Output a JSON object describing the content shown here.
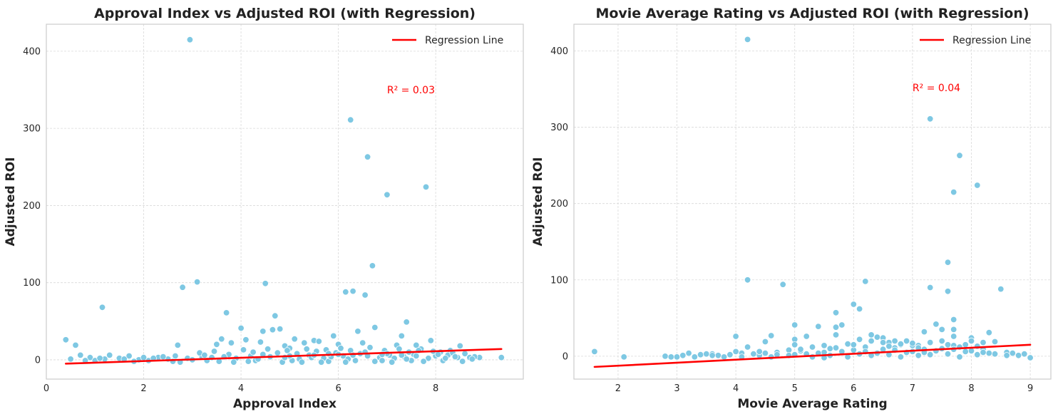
{
  "chart_data": [
    {
      "type": "scatter",
      "title": "Approval Index vs Adjusted ROI (with Regression)",
      "xlabel": "Approval Index",
      "ylabel": "Adjusted ROI",
      "xlim": [
        0,
        9.8
      ],
      "ylim": [
        -25,
        435
      ],
      "xticks": [
        0,
        2,
        4,
        6,
        8
      ],
      "yticks": [
        0,
        100,
        200,
        300,
        400
      ],
      "grid": true,
      "legend": {
        "placement": "top-right",
        "entries": [
          "Regression Line"
        ]
      },
      "annotation": "R² = 0.03",
      "annotation_at": {
        "x": 7.0,
        "y": 350
      },
      "point_color": "#7ec8e3",
      "line_color": "#ff0000",
      "regression": {
        "x": [
          0.4,
          9.35
        ],
        "y": [
          -5,
          14
        ]
      },
      "points": [
        [
          0.4,
          26
        ],
        [
          0.6,
          19
        ],
        [
          1.15,
          68
        ],
        [
          2.8,
          94
        ],
        [
          2.95,
          415
        ],
        [
          3.1,
          101
        ],
        [
          3.7,
          61
        ],
        [
          4.0,
          41
        ],
        [
          4.45,
          37
        ],
        [
          4.5,
          99
        ],
        [
          4.7,
          57
        ],
        [
          4.65,
          39
        ],
        [
          4.8,
          40
        ],
        [
          5.5,
          25
        ],
        [
          5.9,
          31
        ],
        [
          6.15,
          88
        ],
        [
          6.25,
          311
        ],
        [
          6.3,
          89
        ],
        [
          6.55,
          84
        ],
        [
          6.6,
          263
        ],
        [
          6.7,
          122
        ],
        [
          6.75,
          42
        ],
        [
          7.0,
          214
        ],
        [
          7.3,
          31
        ],
        [
          7.4,
          49
        ],
        [
          7.8,
          224
        ],
        [
          2.7,
          19
        ],
        [
          3.5,
          20
        ],
        [
          3.6,
          27
        ],
        [
          3.8,
          22
        ],
        [
          4.1,
          26
        ],
        [
          4.4,
          23
        ],
        [
          4.9,
          18
        ],
        [
          5.1,
          27
        ],
        [
          5.3,
          22
        ],
        [
          5.6,
          24
        ],
        [
          6.0,
          20
        ],
        [
          6.4,
          37
        ],
        [
          6.5,
          22
        ],
        [
          7.2,
          19
        ],
        [
          7.6,
          19
        ],
        [
          7.9,
          25
        ],
        [
          8.3,
          12
        ],
        [
          8.5,
          18
        ],
        [
          8.7,
          3
        ],
        [
          9.35,
          3
        ],
        [
          8.9,
          3
        ],
        [
          8.1,
          10
        ],
        [
          7.7,
          14
        ],
        [
          5.0,
          15
        ],
        [
          0.5,
          1
        ],
        [
          0.7,
          6
        ],
        [
          0.9,
          3
        ],
        [
          1.0,
          -1
        ],
        [
          1.2,
          1
        ],
        [
          1.3,
          6
        ],
        [
          1.5,
          2
        ],
        [
          1.7,
          5
        ],
        [
          1.9,
          0
        ],
        [
          2.1,
          -1
        ],
        [
          2.3,
          3
        ],
        [
          2.5,
          1
        ],
        [
          2.6,
          -2
        ],
        [
          2.9,
          2
        ],
        [
          3.0,
          0
        ],
        [
          3.2,
          4
        ],
        [
          3.3,
          -1
        ],
        [
          3.4,
          3
        ],
        [
          3.9,
          2
        ],
        [
          4.2,
          5
        ],
        [
          4.3,
          -1
        ],
        [
          4.6,
          4
        ],
        [
          5.2,
          1
        ],
        [
          5.4,
          6
        ],
        [
          5.7,
          2
        ],
        [
          5.8,
          -2
        ],
        [
          6.1,
          5
        ],
        [
          6.2,
          1
        ],
        [
          6.35,
          -1
        ],
        [
          6.45,
          8
        ],
        [
          6.85,
          3
        ],
        [
          6.9,
          -1
        ],
        [
          7.05,
          6
        ],
        [
          7.15,
          2
        ],
        [
          7.35,
          4
        ],
        [
          7.5,
          -1
        ],
        [
          7.55,
          7
        ],
        [
          7.85,
          2
        ],
        [
          8.0,
          5
        ],
        [
          8.15,
          -1
        ],
        [
          8.25,
          6
        ],
        [
          8.45,
          3
        ],
        [
          8.6,
          8
        ],
        [
          8.8,
          4
        ],
        [
          3.15,
          9
        ],
        [
          3.45,
          11
        ],
        [
          3.75,
          7
        ],
        [
          4.05,
          13
        ],
        [
          4.25,
          10
        ],
        [
          4.55,
          14
        ],
        [
          4.75,
          9
        ],
        [
          4.95,
          12
        ],
        [
          5.15,
          8
        ],
        [
          5.35,
          14
        ],
        [
          5.55,
          11
        ],
        [
          5.75,
          13
        ],
        [
          5.95,
          9
        ],
        [
          6.05,
          15
        ],
        [
          6.25,
          12
        ],
        [
          6.55,
          10
        ],
        [
          6.65,
          16
        ],
        [
          6.95,
          12
        ],
        [
          7.25,
          14
        ],
        [
          7.45,
          10
        ],
        [
          7.65,
          12
        ],
        [
          7.95,
          11
        ],
        [
          8.35,
          9
        ],
        [
          8.05,
          7
        ],
        [
          2.2,
          2
        ],
        [
          1.6,
          1
        ],
        [
          2.4,
          4
        ],
        [
          2.75,
          -3
        ],
        [
          3.55,
          -2
        ],
        [
          3.85,
          -3
        ],
        [
          4.15,
          -2
        ],
        [
          4.35,
          1
        ],
        [
          4.85,
          -3
        ],
        [
          5.05,
          -1
        ],
        [
          5.25,
          -3
        ],
        [
          5.45,
          3
        ],
        [
          5.65,
          -3
        ],
        [
          5.85,
          4
        ],
        [
          6.15,
          -3
        ],
        [
          6.75,
          -2
        ],
        [
          7.1,
          -3
        ],
        [
          7.4,
          1
        ],
        [
          7.75,
          -2
        ],
        [
          8.2,
          2
        ],
        [
          8.55,
          -2
        ],
        [
          8.75,
          1
        ],
        [
          1.8,
          -2
        ],
        [
          1.1,
          2
        ],
        [
          0.8,
          -1
        ],
        [
          2.0,
          3
        ],
        [
          2.65,
          5
        ],
        [
          3.25,
          6
        ],
        [
          3.65,
          4
        ],
        [
          4.45,
          7
        ],
        [
          5.0,
          5
        ],
        [
          5.5,
          6
        ],
        [
          6.0,
          7
        ],
        [
          6.6,
          5
        ],
        [
          7.0,
          8
        ],
        [
          7.6,
          5
        ],
        [
          8.4,
          4
        ],
        [
          4.9,
          3
        ],
        [
          5.8,
          8
        ],
        [
          6.3,
          6
        ],
        [
          6.9,
          7
        ],
        [
          7.3,
          6
        ]
      ]
    },
    {
      "type": "scatter",
      "title": "Movie Average Rating vs Adjusted ROI (with Regression)",
      "xlabel": "Movie Average Rating",
      "ylabel": "Adjusted ROI",
      "xlim": [
        1.25,
        9.35
      ],
      "ylim": [
        -30,
        435
      ],
      "xticks": [
        2,
        3,
        4,
        5,
        6,
        7,
        8,
        9
      ],
      "yticks": [
        0,
        100,
        200,
        300,
        400
      ],
      "grid": true,
      "legend": {
        "placement": "top-right",
        "entries": [
          "Regression Line"
        ]
      },
      "annotation": "R² = 0.04",
      "annotation_at": {
        "x": 7.0,
        "y": 352
      },
      "point_color": "#7ec8e3",
      "line_color": "#ff0000",
      "regression": {
        "x": [
          1.6,
          9.0
        ],
        "y": [
          -14,
          15
        ]
      },
      "points": [
        [
          1.6,
          6
        ],
        [
          2.1,
          -1
        ],
        [
          2.8,
          0
        ],
        [
          2.9,
          -1
        ],
        [
          3.0,
          -1
        ],
        [
          3.1,
          1
        ],
        [
          3.2,
          4
        ],
        [
          3.3,
          -1
        ],
        [
          3.4,
          2
        ],
        [
          3.5,
          3
        ],
        [
          3.6,
          3
        ],
        [
          3.7,
          1
        ],
        [
          3.8,
          -1
        ],
        [
          3.9,
          2
        ],
        [
          4.0,
          6
        ],
        [
          4.0,
          26
        ],
        [
          4.1,
          4
        ],
        [
          4.2,
          415
        ],
        [
          4.2,
          100
        ],
        [
          4.2,
          12
        ],
        [
          4.3,
          3
        ],
        [
          4.4,
          1
        ],
        [
          4.5,
          19
        ],
        [
          4.6,
          27
        ],
        [
          4.7,
          5
        ],
        [
          4.8,
          94
        ],
        [
          4.9,
          8
        ],
        [
          5.0,
          41
        ],
        [
          5.0,
          22
        ],
        [
          5.0,
          15
        ],
        [
          5.1,
          7
        ],
        [
          5.2,
          26
        ],
        [
          5.3,
          12
        ],
        [
          5.4,
          39
        ],
        [
          5.5,
          14
        ],
        [
          5.6,
          10
        ],
        [
          5.7,
          57
        ],
        [
          5.7,
          38
        ],
        [
          5.7,
          28
        ],
        [
          5.8,
          41
        ],
        [
          5.9,
          16
        ],
        [
          6.0,
          68
        ],
        [
          6.1,
          62
        ],
        [
          6.1,
          22
        ],
        [
          6.2,
          98
        ],
        [
          6.3,
          28
        ],
        [
          6.4,
          25
        ],
        [
          6.5,
          24
        ],
        [
          6.6,
          18
        ],
        [
          6.7,
          20
        ],
        [
          6.8,
          15
        ],
        [
          6.9,
          20
        ],
        [
          7.0,
          14
        ],
        [
          7.1,
          14
        ],
        [
          7.2,
          32
        ],
        [
          7.3,
          311
        ],
        [
          7.3,
          90
        ],
        [
          7.4,
          42
        ],
        [
          7.5,
          35
        ],
        [
          7.6,
          123
        ],
        [
          7.6,
          85
        ],
        [
          7.7,
          215
        ],
        [
          7.7,
          48
        ],
        [
          7.7,
          35
        ],
        [
          7.8,
          263
        ],
        [
          7.9,
          15
        ],
        [
          8.0,
          24
        ],
        [
          8.1,
          224
        ],
        [
          8.2,
          18
        ],
        [
          8.3,
          31
        ],
        [
          8.4,
          19
        ],
        [
          8.5,
          88
        ],
        [
          8.6,
          5
        ],
        [
          8.7,
          4
        ],
        [
          8.8,
          1
        ],
        [
          9.0,
          -2
        ],
        [
          8.9,
          3
        ],
        [
          5.5,
          5
        ],
        [
          6.0,
          8
        ],
        [
          6.5,
          9
        ],
        [
          7.0,
          6
        ],
        [
          7.5,
          10
        ],
        [
          8.0,
          7
        ],
        [
          6.2,
          12
        ],
        [
          6.7,
          11
        ],
        [
          7.2,
          9
        ],
        [
          7.7,
          14
        ],
        [
          5.2,
          3
        ],
        [
          5.8,
          6
        ],
        [
          6.4,
          4
        ],
        [
          6.9,
          5
        ],
        [
          7.4,
          7
        ],
        [
          7.9,
          6
        ],
        [
          8.4,
          3
        ],
        [
          4.5,
          4
        ],
        [
          5.0,
          2
        ],
        [
          5.3,
          -1
        ],
        [
          5.6,
          1
        ],
        [
          6.1,
          3
        ],
        [
          6.6,
          2
        ],
        [
          7.1,
          1
        ],
        [
          7.6,
          3
        ],
        [
          8.1,
          2
        ],
        [
          8.6,
          1
        ],
        [
          4.6,
          -1
        ],
        [
          4.9,
          1
        ],
        [
          5.4,
          4
        ],
        [
          5.9,
          -1
        ],
        [
          6.3,
          1
        ],
        [
          6.8,
          -1
        ],
        [
          7.3,
          2
        ],
        [
          7.8,
          -1
        ],
        [
          8.3,
          4
        ],
        [
          4.1,
          -1
        ],
        [
          4.7,
          2
        ],
        [
          6.0,
          15
        ],
        [
          6.5,
          18
        ],
        [
          7.0,
          17
        ],
        [
          7.5,
          20
        ],
        [
          7.7,
          26
        ],
        [
          8.0,
          20
        ],
        [
          6.3,
          20
        ],
        [
          6.8,
          16
        ],
        [
          7.3,
          18
        ],
        [
          7.8,
          12
        ],
        [
          8.2,
          9
        ],
        [
          5.7,
          11
        ],
        [
          5.1,
          9
        ],
        [
          4.4,
          6
        ],
        [
          3.6,
          1
        ],
        [
          6.6,
          13
        ],
        [
          7.1,
          11
        ],
        [
          7.6,
          15
        ],
        [
          8.1,
          13
        ],
        [
          6.2,
          6
        ],
        [
          6.7,
          8
        ],
        [
          7.2,
          5
        ],
        [
          7.7,
          9
        ],
        [
          8.2,
          5
        ],
        [
          5.5,
          -2
        ]
      ]
    }
  ]
}
